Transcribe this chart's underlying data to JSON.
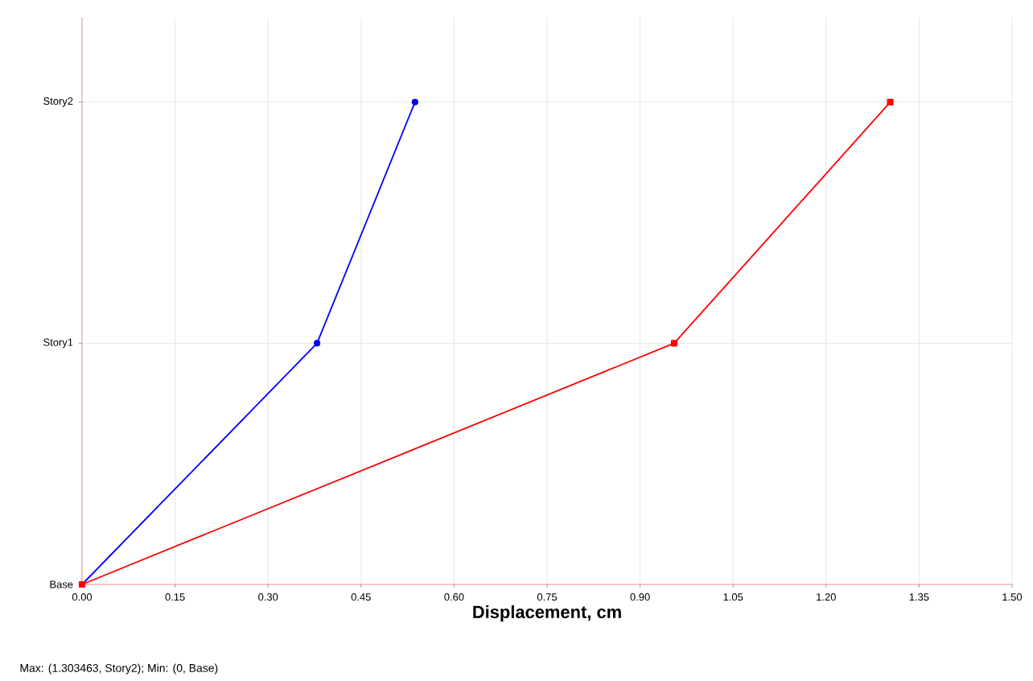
{
  "chart_data": {
    "type": "line",
    "orientation": "horizontal",
    "xlabel": "Displacement, cm",
    "categories": [
      "Story2",
      "Story1",
      "Base"
    ],
    "xlim": [
      0,
      1.5
    ],
    "xticks": [
      {
        "value": 0,
        "label": "0.00"
      },
      {
        "value": 0.15,
        "label": "0.15"
      },
      {
        "value": 0.3,
        "label": "0.30"
      },
      {
        "value": 0.45,
        "label": "0.45"
      },
      {
        "value": 0.6,
        "label": "0.60"
      },
      {
        "value": 0.75,
        "label": "0.75"
      },
      {
        "value": 0.9,
        "label": "0.90"
      },
      {
        "value": 1.05,
        "label": "1.05"
      },
      {
        "value": 1.2,
        "label": "1.20"
      },
      {
        "value": 1.35,
        "label": "1.35"
      },
      {
        "value": 1.5,
        "label": "1.50"
      }
    ],
    "grid": true,
    "series": [
      {
        "color": "#0000ff",
        "marker": "circle",
        "values": [
          0.537,
          0.379,
          0
        ]
      },
      {
        "color": "#ff0000",
        "marker": "square",
        "values": [
          1.303463,
          0.955,
          0
        ]
      }
    ],
    "annotations": [
      "Max: (1.303463, Story2);  Min: (0, Base)"
    ]
  }
}
